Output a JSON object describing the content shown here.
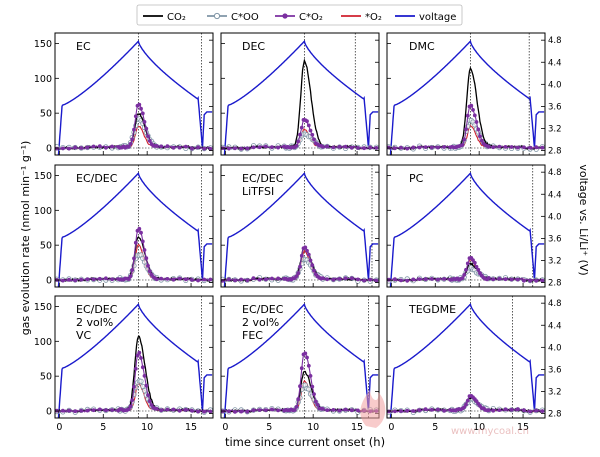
{
  "chart_data": {
    "type": "line",
    "legend": {
      "placement": "top",
      "entries": [
        {
          "name": "CO2",
          "display": "CO₂",
          "color": "#000000",
          "marker": "none"
        },
        {
          "name": "C*OO",
          "display": "C*OO",
          "color": "#7f95a6",
          "marker": "open-circle"
        },
        {
          "name": "C*O2",
          "display": "C*O₂",
          "color": "#7b2fa0",
          "marker": "filled-circle"
        },
        {
          "name": "*O2",
          "display": "*O₂",
          "color": "#d0202e",
          "marker": "none"
        },
        {
          "name": "voltage",
          "display": "voltage",
          "color": "#1a1acc",
          "marker": "none"
        }
      ]
    },
    "xlabel": "time since current onset (h)",
    "ylabel_left": "gas evolution rate (nmol min⁻¹ g⁻¹)",
    "ylabel_right": "voltage vs. Li/Li⁺ (V)",
    "xlim": [
      -0.5,
      17.5
    ],
    "ylim_left": [
      -10,
      165
    ],
    "ylim_right": [
      2.72,
      4.93
    ],
    "xticks": [
      0,
      5,
      10,
      15
    ],
    "yticks_left": [
      0,
      50,
      100,
      150
    ],
    "yticks_right": [
      2.8,
      3.2,
      3.6,
      4.0,
      4.4,
      4.8
    ],
    "panels": [
      {
        "label": "EC",
        "co2_peak": 48,
        "coo_peak": 40,
        "co2o_peak": 62,
        "o2_peak": 30,
        "extra_line": 16.2
      },
      {
        "label": "DEC",
        "co2_peak": 123,
        "coo_peak": 20,
        "co2o_peak": 40,
        "o2_peak": 25,
        "extra_line": 14.8
      },
      {
        "label": "DMC",
        "co2_peak": 112,
        "coo_peak": 38,
        "co2o_peak": 60,
        "o2_peak": 30,
        "extra_line": 15.7
      },
      {
        "label": "EC/DEC",
        "co2_peak": 60,
        "coo_peak": 35,
        "co2o_peak": 72,
        "o2_peak": 50,
        "extra_line": 16.2
      },
      {
        "label": "EC/DEC\nLiTFSI",
        "co2_peak": 45,
        "coo_peak": 28,
        "co2o_peak": 46,
        "o2_peak": 40,
        "extra_line": 16.7
      },
      {
        "label": "PC",
        "co2_peak": 22,
        "coo_peak": 15,
        "co2o_peak": 30,
        "o2_peak": 28,
        "extra_line": 16.1
      },
      {
        "label": "EC/DEC\n2 vol%\nVC",
        "co2_peak": 105,
        "coo_peak": 42,
        "co2o_peak": 82,
        "o2_peak": 38,
        "extra_line": 16.2
      },
      {
        "label": "EC/DEC\n2 vol%\nFEC",
        "co2_peak": 55,
        "coo_peak": 35,
        "co2o_peak": 82,
        "o2_peak": 42,
        "extra_line": 16.3
      },
      {
        "label": "TEGDME",
        "co2_peak": 18,
        "coo_peak": 15,
        "co2o_peak": 20,
        "o2_peak": 18,
        "extra_line": 13.8
      }
    ],
    "peak_time_h": 9,
    "grid": false
  },
  "watermark": "www.mycoal.cn"
}
